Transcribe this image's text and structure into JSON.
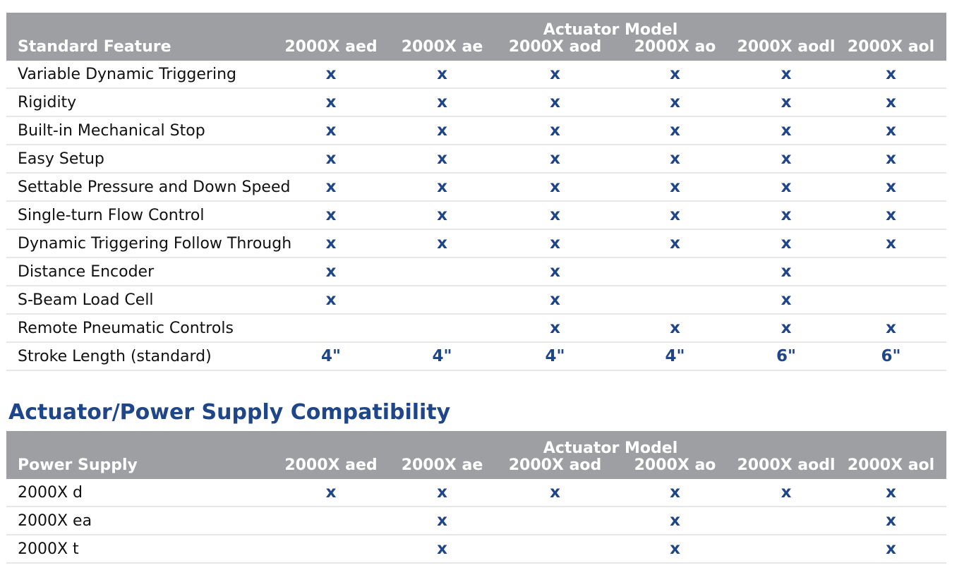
{
  "features_table": {
    "group_header": "Actuator Model",
    "row_header": "Standard Feature",
    "columns": [
      "2000X aed",
      "2000X ae",
      "2000X aod",
      "2000X ao",
      "2000X aodl",
      "2000X aol"
    ],
    "rows": [
      {
        "label": "Variable Dynamic Triggering",
        "cells": [
          "x",
          "x",
          "x",
          "x",
          "x",
          "x"
        ]
      },
      {
        "label": "Rigidity",
        "cells": [
          "x",
          "x",
          "x",
          "x",
          "x",
          "x"
        ]
      },
      {
        "label": "Built-in Mechanical Stop",
        "cells": [
          "x",
          "x",
          "x",
          "x",
          "x",
          "x"
        ]
      },
      {
        "label": "Easy Setup",
        "cells": [
          "x",
          "x",
          "x",
          "x",
          "x",
          "x"
        ]
      },
      {
        "label": "Settable Pressure and Down Speed",
        "cells": [
          "x",
          "x",
          "x",
          "x",
          "x",
          "x"
        ]
      },
      {
        "label": "Single-turn Flow Control",
        "cells": [
          "x",
          "x",
          "x",
          "x",
          "x",
          "x"
        ]
      },
      {
        "label": "Dynamic Triggering Follow Through",
        "cells": [
          "x",
          "x",
          "x",
          "x",
          "x",
          "x"
        ]
      },
      {
        "label": "Distance Encoder",
        "cells": [
          "x",
          "",
          "x",
          "",
          "x",
          ""
        ]
      },
      {
        "label": "S-Beam Load Cell",
        "cells": [
          "x",
          "",
          "x",
          "",
          "x",
          ""
        ]
      },
      {
        "label": "Remote Pneumatic Controls",
        "cells": [
          "",
          "",
          "x",
          "x",
          "x",
          "x"
        ]
      },
      {
        "label": "Stroke Length (standard)",
        "cells": [
          "4\"",
          "4\"",
          "4\"",
          "4\"",
          "6\"",
          "6\""
        ]
      }
    ]
  },
  "compat_section_title": "Actuator/Power Supply Compatibility",
  "compat_table": {
    "group_header": "Actuator Model",
    "row_header": "Power Supply",
    "columns": [
      "2000X aed",
      "2000X ae",
      "2000X aod",
      "2000X ao",
      "2000X aodl",
      "2000X aol"
    ],
    "rows": [
      {
        "label": "2000X d",
        "cells": [
          "x",
          "x",
          "x",
          "x",
          "x",
          "x"
        ]
      },
      {
        "label": "2000X ea",
        "cells": [
          "",
          "x",
          "",
          "x",
          "",
          "x"
        ]
      },
      {
        "label": "2000X t",
        "cells": [
          "",
          "x",
          "",
          "x",
          "",
          "x"
        ]
      }
    ]
  },
  "colors": {
    "header_bg": "#9d9fa2",
    "header_text": "#ffffff",
    "mark": "#1f4688",
    "title": "#1f4688",
    "row_divider": "#e6e7e8"
  }
}
